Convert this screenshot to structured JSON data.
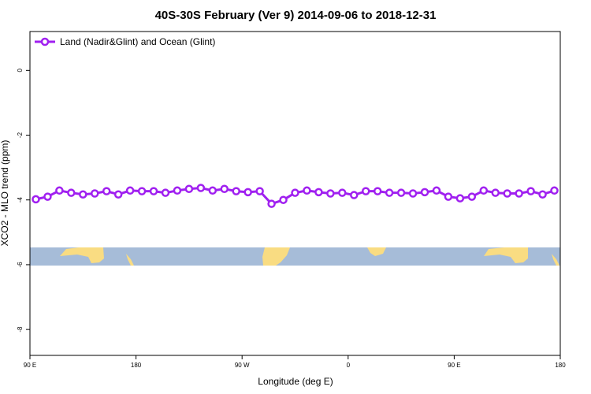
{
  "chart_data": {
    "type": "line",
    "title": "40S-30S February (Ver 9)   2014-09-06 to 2018-12-31",
    "x_label": "Longitude (deg E)",
    "y_label": "XCO2 - MLO trend (ppm)",
    "x": [
      95,
      105,
      115,
      125,
      135,
      145,
      155,
      165,
      175,
      185,
      195,
      205,
      215,
      225,
      235,
      245,
      255,
      265,
      275,
      285,
      295,
      305,
      315,
      325,
      335,
      345,
      355,
      365,
      375,
      385,
      395,
      405,
      415,
      425,
      435,
      445,
      455,
      465,
      475,
      485,
      495,
      505,
      515,
      525,
      535
    ],
    "series": [
      {
        "name": "Land (Nadir&Glint) and Ocean (Glint)",
        "color": "#a020f0",
        "values": [
          -3.98,
          -3.9,
          -3.71,
          -3.78,
          -3.83,
          -3.8,
          -3.73,
          -3.83,
          -3.71,
          -3.73,
          -3.73,
          -3.78,
          -3.71,
          -3.66,
          -3.63,
          -3.71,
          -3.66,
          -3.73,
          -3.76,
          -3.73,
          -4.12,
          -4.0,
          -3.78,
          -3.71,
          -3.76,
          -3.8,
          -3.78,
          -3.85,
          -3.73,
          -3.73,
          -3.78,
          -3.78,
          -3.8,
          -3.76,
          -3.71,
          -3.9,
          -3.95,
          -3.9,
          -3.71,
          -3.78,
          -3.8,
          -3.8,
          -3.73,
          -3.83,
          -3.71
        ]
      }
    ],
    "xlim": [
      90,
      540
    ],
    "xticks": [
      {
        "value": 90,
        "label": "90 E"
      },
      180,
      {
        "value": 270,
        "label": "90 W"
      },
      {
        "value": 360,
        "label": "0"
      },
      {
        "value": 450,
        "label": "90 E"
      },
      {
        "value": 540,
        "label": "180"
      }
    ],
    "ylim": [
      -8.8,
      1.2
    ],
    "yticks": [
      0,
      -2,
      -4,
      -6,
      -8
    ],
    "legend": "top-left"
  }
}
